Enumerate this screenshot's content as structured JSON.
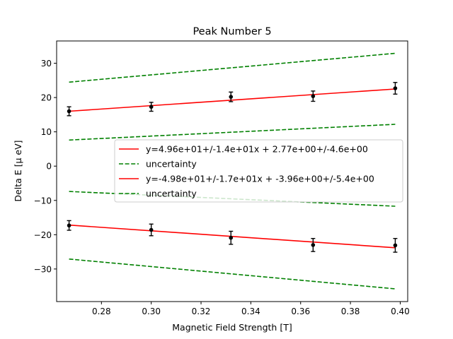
{
  "chart_data": {
    "type": "line",
    "title": "Peak Number 5",
    "xlabel": "Magnetic Field Strength [T]",
    "ylabel": "Delta E [μ eV]",
    "xlim": [
      0.262,
      0.403
    ],
    "ylim": [
      -39.5,
      36.5
    ],
    "xticks": [
      0.28,
      0.3,
      0.32,
      0.34,
      0.36,
      0.38,
      0.4
    ],
    "xtick_labels": [
      "0.28",
      "0.30",
      "0.32",
      "0.34",
      "0.36",
      "0.38",
      "0.40"
    ],
    "yticks": [
      -30,
      -20,
      -10,
      0,
      10,
      20,
      30
    ],
    "ytick_labels": [
      "−30",
      "−20",
      "−10",
      "0",
      "10",
      "20",
      "30"
    ],
    "grid": false,
    "legend_position": "center-right",
    "error_points": [
      {
        "x": 0.267,
        "y": 16.0,
        "err": 1.3
      },
      {
        "x": 0.3,
        "y": 17.3,
        "err": 1.3
      },
      {
        "x": 0.332,
        "y": 20.2,
        "err": 1.4
      },
      {
        "x": 0.365,
        "y": 20.4,
        "err": 1.5
      },
      {
        "x": 0.398,
        "y": 22.7,
        "err": 1.7
      },
      {
        "x": 0.267,
        "y": -17.3,
        "err": 1.4
      },
      {
        "x": 0.3,
        "y": -18.6,
        "err": 1.7
      },
      {
        "x": 0.332,
        "y": -20.9,
        "err": 1.9
      },
      {
        "x": 0.365,
        "y": -23.0,
        "err": 1.9
      },
      {
        "x": 0.398,
        "y": -23.1,
        "err": 2.0
      }
    ],
    "series": [
      {
        "name": "y=4.96e+01+/-1.4e+01x + 2.77e+00+/-4.6e+00",
        "color": "#ff0000",
        "style": "solid",
        "x": [
          0.267,
          0.398
        ],
        "y": [
          16.0,
          22.5
        ]
      },
      {
        "name": "uncertainty",
        "color": "#008000",
        "style": "dashed",
        "x": [
          0.267,
          0.398
        ],
        "y": [
          24.5,
          32.9
        ]
      },
      {
        "name": "",
        "color": "#008000",
        "style": "dashed",
        "x": [
          0.267,
          0.398
        ],
        "y": [
          7.6,
          12.2
        ]
      },
      {
        "name": "y=-4.98e+01+/-1.7e+01x + -3.96e+00+/-5.4e+00",
        "color": "#ff0000",
        "style": "solid",
        "x": [
          0.267,
          0.398
        ],
        "y": [
          -17.2,
          -23.8
        ]
      },
      {
        "name": "uncertainty",
        "color": "#008000",
        "style": "dashed",
        "x": [
          0.267,
          0.398
        ],
        "y": [
          -7.4,
          -11.7
        ]
      },
      {
        "name": "",
        "color": "#008000",
        "style": "dashed",
        "x": [
          0.267,
          0.398
        ],
        "y": [
          -27.1,
          -35.8
        ]
      }
    ],
    "legend": [
      {
        "label": "y=4.96e+01+/-1.4e+01x + 2.77e+00+/-4.6e+00",
        "color": "#ff0000",
        "style": "solid"
      },
      {
        "label": "uncertainty",
        "color": "#008000",
        "style": "dashed"
      },
      {
        "label": "y=-4.98e+01+/-1.7e+01x + -3.96e+00+/-5.4e+00",
        "color": "#ff0000",
        "style": "solid"
      },
      {
        "label": "uncertainty",
        "color": "#008000",
        "style": "dashed"
      }
    ]
  }
}
